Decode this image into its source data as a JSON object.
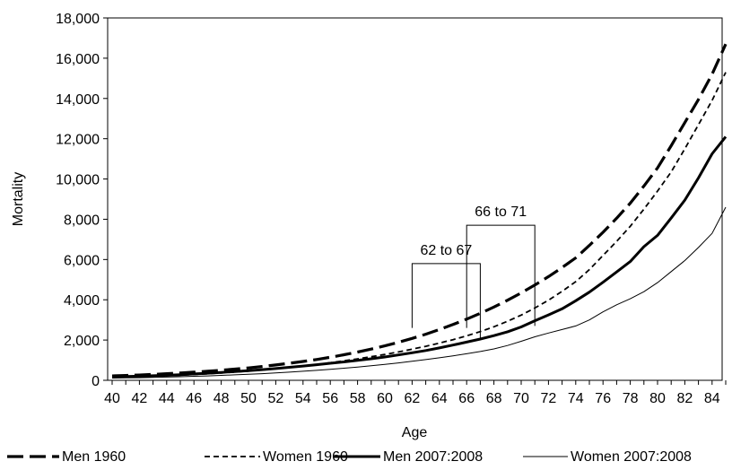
{
  "chart_data": {
    "type": "line",
    "title": "",
    "xlabel": "Age",
    "ylabel": "Mortality",
    "xlim": [
      40,
      85
    ],
    "ylim": [
      0,
      18000
    ],
    "y_ticks": [
      0,
      2000,
      4000,
      6000,
      8000,
      10000,
      12000,
      14000,
      16000,
      18000
    ],
    "y_tick_labels": [
      "0",
      "2,000",
      "4,000",
      "6,000",
      "8,000",
      "10,000",
      "12,000",
      "14,000",
      "16,000",
      "18,000"
    ],
    "x_ticks": [
      40,
      42,
      44,
      46,
      48,
      50,
      52,
      54,
      56,
      58,
      60,
      62,
      64,
      66,
      68,
      70,
      72,
      74,
      76,
      78,
      80,
      82,
      84
    ],
    "x_tick_labels": [
      "40",
      "42",
      "44",
      "46",
      "48",
      "50",
      "52",
      "54",
      "56",
      "58",
      "60",
      "62",
      "64",
      "66",
      "68",
      "70",
      "72",
      "74",
      "76",
      "78",
      "80",
      "82",
      "84"
    ],
    "grid": false,
    "legend_position": "bottom",
    "x": [
      40,
      41,
      42,
      43,
      44,
      45,
      46,
      47,
      48,
      49,
      50,
      51,
      52,
      53,
      54,
      55,
      56,
      57,
      58,
      59,
      60,
      61,
      62,
      63,
      64,
      65,
      66,
      67,
      68,
      69,
      70,
      71,
      72,
      73,
      74,
      75,
      76,
      77,
      78,
      79,
      80,
      81,
      82,
      83,
      84,
      85
    ],
    "series": [
      {
        "name": "Men 1960",
        "style": "long-dash",
        "values": [
          220,
          240,
          265,
          295,
          330,
          365,
          405,
          450,
          500,
          555,
          615,
          685,
          760,
          845,
          935,
          1035,
          1145,
          1270,
          1405,
          1550,
          1710,
          1890,
          2080,
          2290,
          2520,
          2770,
          3040,
          3330,
          3640,
          3980,
          4340,
          4730,
          5150,
          5600,
          6080,
          6700,
          7350,
          8050,
          8800,
          9650,
          10550,
          11650,
          12800,
          13950,
          15200,
          16700
        ]
      },
      {
        "name": "Women 1960",
        "style": "short-dash",
        "values": [
          150,
          165,
          185,
          205,
          230,
          260,
          290,
          325,
          365,
          410,
          460,
          515,
          575,
          640,
          710,
          790,
          875,
          965,
          1065,
          1170,
          1285,
          1410,
          1545,
          1690,
          1850,
          2020,
          2210,
          2420,
          2660,
          2930,
          3240,
          3590,
          3980,
          4420,
          4900,
          5500,
          6200,
          6900,
          7650,
          8500,
          9400,
          10350,
          11500,
          12700,
          13900,
          15300
        ]
      },
      {
        "name": "Men 2007:2008",
        "style": "thick-solid",
        "values": [
          170,
          185,
          205,
          225,
          250,
          280,
          315,
          350,
          390,
          435,
          480,
          530,
          585,
          645,
          710,
          775,
          845,
          915,
          990,
          1070,
          1160,
          1260,
          1370,
          1480,
          1610,
          1750,
          1900,
          2050,
          2220,
          2410,
          2650,
          2960,
          3250,
          3550,
          3950,
          4380,
          4870,
          5380,
          5900,
          6640,
          7200,
          8060,
          8950,
          10050,
          11250,
          12100
        ]
      },
      {
        "name": "Women 2007:2008",
        "style": "thin-solid",
        "values": [
          110,
          120,
          130,
          145,
          160,
          180,
          200,
          220,
          245,
          270,
          300,
          330,
          365,
          405,
          450,
          495,
          545,
          600,
          660,
          720,
          790,
          865,
          945,
          1030,
          1120,
          1215,
          1320,
          1430,
          1560,
          1730,
          1940,
          2160,
          2350,
          2520,
          2700,
          3000,
          3400,
          3750,
          4050,
          4400,
          4850,
          5400,
          5950,
          6600,
          7300,
          8600
        ]
      }
    ],
    "annotations": [
      {
        "label": "62 to 67",
        "from": 62,
        "to": 67,
        "top": 5800,
        "bottom_left": 2600,
        "bottom_right": 2000
      },
      {
        "label": "66 to 71",
        "from": 66,
        "to": 71,
        "top": 7700,
        "bottom_left": 2600,
        "bottom_right": 2700
      }
    ]
  }
}
